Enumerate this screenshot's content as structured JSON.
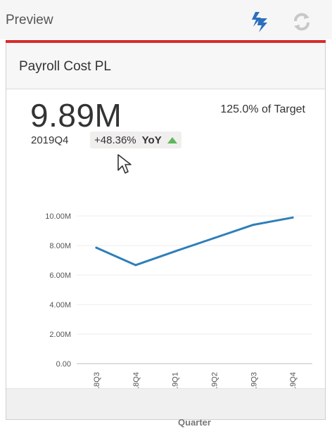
{
  "header": {
    "title": "Preview",
    "sync_icon": "lightning-sync-icon",
    "refresh_icon": "refresh-icon"
  },
  "colors": {
    "accent_bar": "#d62b2b",
    "line": "#2f7fb8",
    "up": "#5cb85c",
    "icon_blue": "#2b6fbd"
  },
  "card": {
    "title": "Payroll Cost PL",
    "kpi_value": "9.89M",
    "target_text": "125.0% of Target",
    "period": "2019Q4",
    "change": "+48.36%",
    "change_label": "YoY",
    "change_icon": "up-triangle-icon"
  },
  "chart_data": {
    "type": "line",
    "categories": [
      "2018Q3",
      "2018Q4",
      "2019Q1",
      "2019Q2",
      "2019Q3",
      "2019Q4"
    ],
    "series": [
      {
        "values": [
          7.85,
          6.67,
          7.6,
          8.5,
          9.4,
          9.89
        ]
      }
    ],
    "ylim": [
      0,
      10
    ],
    "yticks": [
      "0.00",
      "2.00M",
      "4.00M",
      "6.00M",
      "8.00M",
      "10.00M"
    ],
    "ytick_values": [
      0,
      2,
      4,
      6,
      8,
      10
    ],
    "xlabel": "Quarter",
    "ylabel": "",
    "grid": true
  }
}
